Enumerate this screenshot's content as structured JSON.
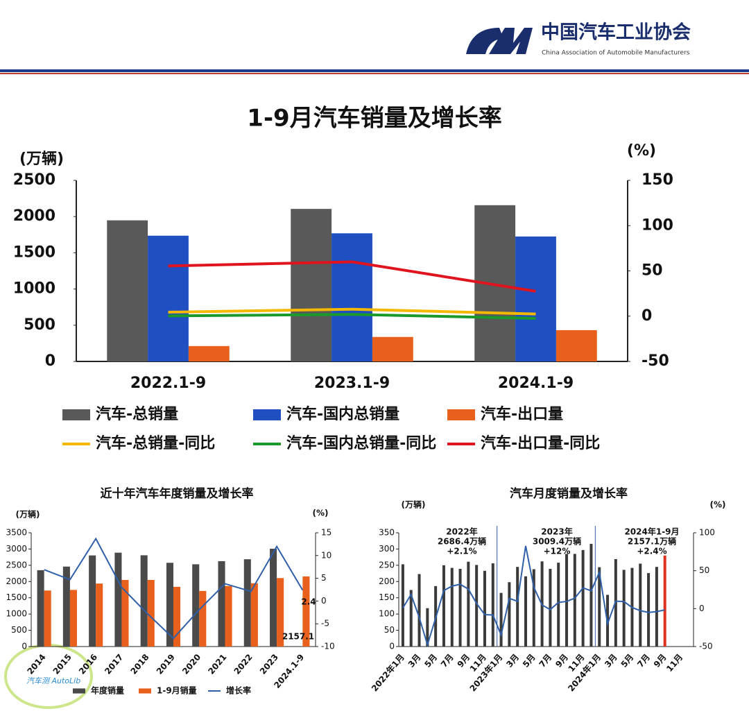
{
  "header": {
    "org": "中国汽车工业协会",
    "org_en": "China Association of Automobile Manufacturers",
    "watermark": "汽车测 AutoLib"
  },
  "chart_data": [
    {
      "type": "bar",
      "title": "1-9月汽车销量及增长率",
      "ylabel": "(万辆)",
      "y2label": "(%)",
      "categories": [
        "2022.1-9",
        "2023.1-9",
        "2024.1-9"
      ],
      "ylim": [
        0,
        2500
      ],
      "yticks": [
        0,
        500,
        1000,
        1500,
        2000,
        2500
      ],
      "y2lim": [
        -50,
        150
      ],
      "y2ticks": [
        -50,
        0,
        50,
        100,
        150
      ],
      "legend": true,
      "series": [
        {
          "name": "汽车-总销量",
          "kind": "bar",
          "color": "#595959",
          "values": [
            1948,
            2106,
            2157
          ]
        },
        {
          "name": "汽车-国内总销量",
          "kind": "bar",
          "color": "#1f4fc1",
          "values": [
            1736,
            1769,
            1725
          ]
        },
        {
          "name": "汽车-出口量",
          "kind": "bar",
          "color": "#e8601c",
          "values": [
            212,
            338,
            432
          ]
        },
        {
          "name": "汽车-总销量-同比",
          "kind": "line",
          "axis": "y2",
          "color": "#f5b800",
          "values": [
            4.4,
            7.7,
            2.4
          ]
        },
        {
          "name": "汽车-国内总销量-同比",
          "kind": "line",
          "axis": "y2",
          "color": "#1a9a2a",
          "values": [
            0.3,
            1.9,
            -2.5
          ]
        },
        {
          "name": "汽车-出口量-同比",
          "kind": "line",
          "axis": "y2",
          "color": "#e0141e",
          "values": [
            55.5,
            60,
            27.5
          ]
        }
      ]
    },
    {
      "type": "bar",
      "title": "近十年汽车年度销量及增长率",
      "ylabel": "(万辆)",
      "y2label": "(%)",
      "categories": [
        "2014",
        "2015",
        "2016",
        "2017",
        "2018",
        "2019",
        "2020",
        "2021",
        "2022",
        "2023",
        "2024.1-9"
      ],
      "ylim": [
        0,
        3500
      ],
      "yticks": [
        0,
        500,
        1000,
        1500,
        2000,
        2500,
        3000,
        3500
      ],
      "y2lim": [
        -10,
        15
      ],
      "y2ticks": [
        -10,
        -5,
        0,
        5,
        10,
        15
      ],
      "legend": true,
      "annotations": [
        [
          "2.4"
        ],
        [
          "2157.1"
        ]
      ],
      "series": [
        {
          "name": "年度销量",
          "kind": "bar",
          "color": "#4a4a4a",
          "values": [
            2349,
            2460,
            2803,
            2888,
            2808,
            2577,
            2531,
            2627,
            2686,
            3009,
            null
          ]
        },
        {
          "name": "1-9月销量",
          "kind": "bar",
          "color": "#e8601c",
          "values": [
            1723,
            1742,
            1938,
            2049,
            2049,
            1837,
            1711,
            1862,
            1948,
            2107,
            2157
          ]
        },
        {
          "name": "增长率",
          "kind": "line",
          "axis": "y2",
          "color": "#2f5fa8",
          "values": [
            6.9,
            4.7,
            13.7,
            3.0,
            -2.8,
            -8.2,
            -1.9,
            3.8,
            2.1,
            12.0,
            2.4
          ]
        }
      ]
    },
    {
      "type": "bar",
      "title": "汽车月度销量及增长率",
      "ylabel": "(万辆)",
      "y2label": "(%)",
      "categories": [
        "2022年1月",
        null,
        "3月",
        null,
        "5月",
        null,
        "7月",
        null,
        "9月",
        null,
        "11月",
        null,
        "2023年1月",
        null,
        "3月",
        null,
        "5月",
        null,
        "7月",
        null,
        "9月",
        null,
        "11月",
        null,
        "2024年1月",
        null,
        "3月",
        null,
        "5月",
        null,
        "7月",
        null,
        "9月",
        null,
        "11月",
        null
      ],
      "ylim": [
        0,
        350
      ],
      "yticks": [
        0,
        50,
        100,
        150,
        200,
        250,
        300,
        350
      ],
      "y2lim": [
        -50,
        100
      ],
      "y2ticks": [
        -50,
        0,
        50,
        100
      ],
      "legend": false,
      "annotations": [
        [
          "2022年",
          "2686.4万辆",
          "+2.1%"
        ],
        [
          "2023年",
          "3009.4万辆",
          "+12%"
        ],
        [
          "2024年1-9月",
          "2157.1万辆",
          "+2.4%"
        ]
      ],
      "series": [
        {
          "name": "月度销量",
          "kind": "bar",
          "color": "#3a3a3a",
          "colors": [
            "#3a3a3a",
            "#3a3a3a",
            "#3a3a3a",
            "#3a3a3a",
            "#3a3a3a",
            "#3a3a3a",
            "#3a3a3a",
            "#3a3a3a",
            "#3a3a3a",
            "#3a3a3a",
            "#3a3a3a",
            "#3a3a3a",
            "#3a3a3a",
            "#3a3a3a",
            "#3a3a3a",
            "#3a3a3a",
            "#3a3a3a",
            "#3a3a3a",
            "#3a3a3a",
            "#3a3a3a",
            "#3a3a3a",
            "#3a3a3a",
            "#3a3a3a",
            "#3a3a3a",
            "#3a3a3a",
            "#3a3a3a",
            "#3a3a3a",
            "#3a3a3a",
            "#3a3a3a",
            "#3a3a3a",
            "#3a3a3a",
            "#3a3a3a",
            "#e0301e",
            "#3a3a3a",
            "#3a3a3a",
            "#3a3a3a"
          ],
          "values": [
            253,
            174,
            223,
            118,
            186,
            250,
            242,
            239,
            261,
            251,
            233,
            256,
            165,
            198,
            245,
            216,
            238,
            262,
            239,
            258,
            285,
            285,
            297,
            316,
            244,
            159,
            269,
            236,
            242,
            255,
            226,
            245,
            280,
            null,
            null,
            null
          ]
        },
        {
          "name": "增长率",
          "kind": "line",
          "axis": "y2",
          "color": "#2f5fa8",
          "values": [
            0.9,
            18.7,
            -11.7,
            -47.6,
            -12.6,
            23.8,
            29.7,
            32.1,
            25.7,
            6.9,
            -7.9,
            -8.4,
            -34.8,
            13.5,
            9.7,
            82.7,
            27.9,
            4.8,
            -1.3,
            8.2,
            9.5,
            13.8,
            27.4,
            23.5,
            47.9,
            -19.9,
            9.9,
            9.3,
            1.5,
            -2.7,
            -5.1,
            -3.9,
            -1.7,
            null,
            null,
            null
          ]
        }
      ]
    }
  ]
}
